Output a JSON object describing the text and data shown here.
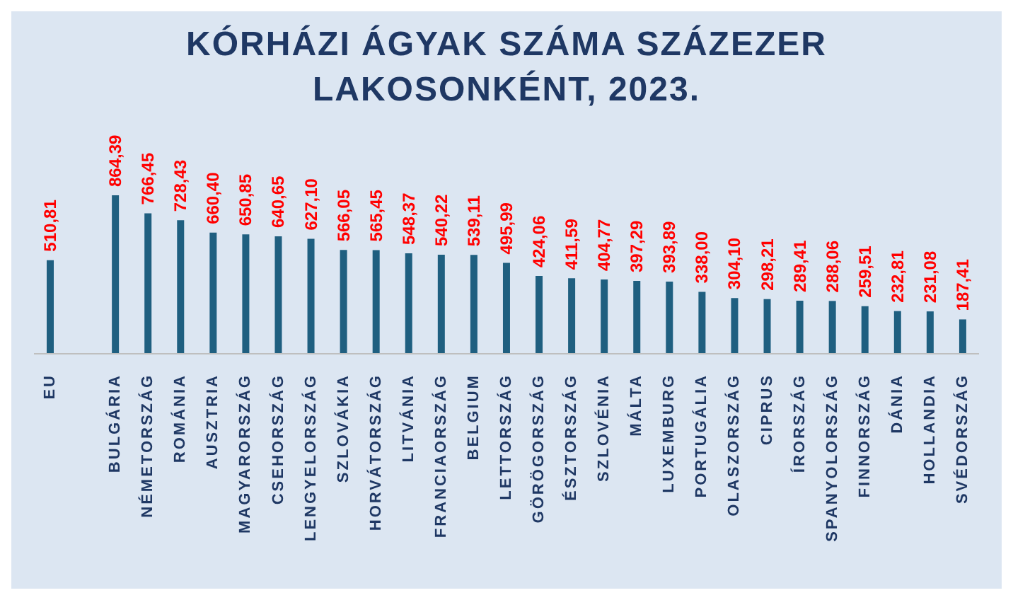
{
  "chart_data": {
    "type": "bar",
    "title": "KÓRHÁZI ÁGYAK SZÁMA SZÁZEZER LAKOSONKÉNT, 2023.",
    "categories": [
      "EU",
      null,
      "BULGÁRIA",
      "NÉMETORSZÁG",
      "ROMÁNIA",
      "AUSZTRIA",
      "MAGYARORSZÁG",
      "CSEHORSZÁG",
      "LENGYELORSZÁG",
      "SZLOVÁKIA",
      "HORVÁTORSZÁG",
      "LITVÁNIA",
      "FRANCIAORSZÁG",
      "BELGIUM",
      "LETTORSZÁG",
      "GÖRÖGORSZÁG",
      "ÉSZTORSZÁG",
      "SZLOVÉNIA",
      "MÁLTA",
      "LUXEMBURG",
      "PORTUGÁLIA",
      "OLASZORSZÁG",
      "CIPRUS",
      "ÍRORSZÁG",
      "SPANYOLORSZÁG",
      "FINNORSZÁG",
      "DÁNIA",
      "HOLLANDIA",
      "SVÉDORSZÁG"
    ],
    "values": [
      510.81,
      null,
      864.39,
      766.45,
      728.43,
      660.4,
      650.85,
      640.65,
      627.1,
      566.05,
      565.45,
      548.37,
      540.22,
      539.11,
      495.99,
      424.06,
      411.59,
      404.77,
      397.29,
      393.89,
      338.0,
      304.1,
      298.21,
      289.41,
      288.06,
      259.51,
      232.81,
      231.08,
      187.41
    ],
    "value_labels": [
      "510,81",
      null,
      "864,39",
      "766,45",
      "728,43",
      "660,40",
      "650,85",
      "640,65",
      "627,10",
      "566,05",
      "565,45",
      "548,37",
      "540,22",
      "539,11",
      "495,99",
      "424,06",
      "411,59",
      "404,77",
      "397,29",
      "393,89",
      "338,00",
      "304,10",
      "298,21",
      "289,41",
      "288,06",
      "259,51",
      "232,81",
      "231,08",
      "187,41"
    ],
    "color": "#1f5f80",
    "tick_labels": "x"
  }
}
